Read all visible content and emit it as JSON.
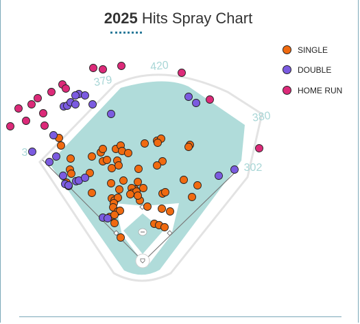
{
  "title": {
    "year": "2025",
    "text": " Hits Spray Chart"
  },
  "legend": [
    {
      "label": "SINGLE",
      "color": "#f06a10"
    },
    {
      "label": "DOUBLE",
      "color": "#7b5be0"
    },
    {
      "label": "HOME RUN",
      "color": "#dc2a79"
    }
  ],
  "distances": [
    "420",
    "379",
    "380",
    "3",
    "302"
  ],
  "colors": {
    "grass": "#b0dcda",
    "infield": "#ffffff",
    "wall": "#e6e6e6"
  },
  "chart_data": {
    "type": "scatter",
    "title": "2025 Hits Spray Chart",
    "series": [
      {
        "name": "SINGLE",
        "color": "#f06a10",
        "points": [
          [
            86,
            201
          ],
          [
            89,
            212
          ],
          [
            103,
            231
          ],
          [
            102,
            247
          ],
          [
            104,
            253
          ],
          [
            97,
            266
          ],
          [
            100,
            271
          ],
          [
            131,
            252
          ],
          [
            134,
            281
          ],
          [
            134,
            228
          ],
          [
            147,
            222
          ],
          [
            150,
            217
          ],
          [
            169,
            217
          ],
          [
            176,
            212
          ],
          [
            178,
            220
          ],
          [
            187,
            223
          ],
          [
            211,
            209
          ],
          [
            229,
            205
          ],
          [
            235,
            202
          ],
          [
            230,
            208
          ],
          [
            277,
            211
          ],
          [
            275,
            214
          ],
          [
            237,
            235
          ],
          [
            229,
            241
          ],
          [
            150,
            235
          ],
          [
            156,
            233
          ],
          [
            171,
            234
          ],
          [
            163,
            245
          ],
          [
            173,
            241
          ],
          [
            202,
            246
          ],
          [
            162,
            267
          ],
          [
            180,
            263
          ],
          [
            201,
            265
          ],
          [
            197,
            276
          ],
          [
            192,
            274
          ],
          [
            193,
            281
          ],
          [
            199,
            279
          ],
          [
            209,
            274
          ],
          [
            204,
            292
          ],
          [
            201,
            285
          ],
          [
            190,
            283
          ],
          [
            163,
            289
          ],
          [
            167,
            292
          ],
          [
            172,
            288
          ],
          [
            166,
            296
          ],
          [
            165,
            302
          ],
          [
            172,
            308
          ],
          [
            175,
            307
          ],
          [
            160,
            316
          ],
          [
            167,
            313
          ],
          [
            167,
            325
          ],
          [
            176,
            346
          ],
          [
            215,
            301
          ],
          [
            237,
            282
          ],
          [
            241,
            280
          ],
          [
            236,
            304
          ],
          [
            248,
            308
          ],
          [
            225,
            326
          ],
          [
            232,
            328
          ],
          [
            240,
            331
          ],
          [
            268,
            262
          ],
          [
            288,
            270
          ],
          [
            280,
            287
          ],
          [
            174,
            276
          ]
        ]
      },
      {
        "name": "DOUBLE",
        "color": "#7b5be0",
        "points": [
          [
            47,
            221
          ],
          [
            72,
            236
          ],
          [
            78,
            197
          ],
          [
            82,
            228
          ],
          [
            93,
            155
          ],
          [
            98,
            154
          ],
          [
            103,
            149
          ],
          [
            110,
            152
          ],
          [
            115,
            137
          ],
          [
            110,
            139
          ],
          [
            124,
            139
          ],
          [
            135,
            152
          ],
          [
            162,
            166
          ],
          [
            92,
            256
          ],
          [
            95,
            268
          ],
          [
            100,
            270
          ],
          [
            111,
            264
          ],
          [
            115,
            263
          ],
          [
            124,
            259
          ],
          [
            150,
            317
          ],
          [
            157,
            318
          ],
          [
            275,
            141
          ],
          [
            286,
            150
          ],
          [
            319,
            256
          ],
          [
            342,
            247
          ]
        ]
      },
      {
        "name": "HOME RUN",
        "color": "#dc2a79",
        "points": [
          [
            15,
            184
          ],
          [
            27,
            158
          ],
          [
            38,
            176
          ],
          [
            46,
            152
          ],
          [
            55,
            143
          ],
          [
            63,
            165
          ],
          [
            65,
            183
          ],
          [
            75,
            134
          ],
          [
            91,
            123
          ],
          [
            96,
            129
          ],
          [
            136,
            99
          ],
          [
            150,
            101
          ],
          [
            177,
            96
          ],
          [
            265,
            106
          ],
          [
            306,
            145
          ],
          [
            378,
            216
          ]
        ]
      }
    ]
  }
}
